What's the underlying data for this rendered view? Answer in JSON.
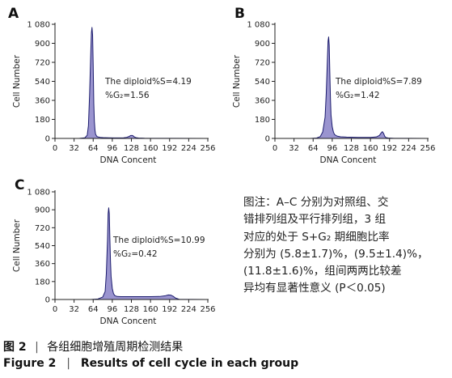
{
  "chart_data": [
    {
      "type": "area",
      "panel": "A",
      "xlabel": "DNA Concent",
      "ylabel": "Cell Number",
      "xlim": [
        0,
        256
      ],
      "ylim": [
        0,
        1080
      ],
      "xticks": [
        "0",
        "32",
        "64",
        "96",
        "128",
        "160",
        "192",
        "224",
        "256"
      ],
      "yticks": [
        "0",
        "180",
        "360",
        "540",
        "720",
        "900",
        "1 080"
      ],
      "annotation": [
        "The diploid%S=4.19",
        "%G₂=1.56"
      ],
      "x": [
        0,
        40,
        50,
        54,
        56,
        58,
        60,
        61,
        62,
        63,
        64,
        65,
        66,
        67,
        68,
        70,
        72,
        76,
        80,
        90,
        100,
        110,
        115,
        120,
        124,
        127,
        130,
        133,
        136,
        140,
        150,
        256
      ],
      "y": [
        0,
        0,
        6,
        30,
        120,
        420,
        820,
        1000,
        1050,
        980,
        700,
        330,
        160,
        80,
        40,
        20,
        14,
        10,
        8,
        6,
        5,
        5,
        6,
        10,
        18,
        28,
        28,
        14,
        7,
        4,
        2,
        0
      ]
    },
    {
      "type": "area",
      "panel": "B",
      "xlabel": "DNA Concent",
      "ylabel": "Cell Number",
      "xlim": [
        0,
        256
      ],
      "ylim": [
        0,
        1080
      ],
      "xticks": [
        "0",
        "32",
        "64",
        "96",
        "128",
        "160",
        "192",
        "224",
        "256"
      ],
      "yticks": [
        "0",
        "180",
        "360",
        "540",
        "720",
        "900",
        "1 080"
      ],
      "annotation": [
        "The diploid%S=7.89",
        "%G₂=1.42"
      ],
      "x": [
        0,
        60,
        70,
        76,
        80,
        84,
        86,
        88,
        89,
        90,
        91,
        92,
        93,
        94,
        96,
        98,
        100,
        104,
        110,
        120,
        140,
        160,
        170,
        175,
        178,
        180,
        182,
        184,
        186,
        190,
        200,
        256
      ],
      "y": [
        0,
        0,
        4,
        18,
        60,
        200,
        430,
        760,
        920,
        960,
        880,
        620,
        380,
        220,
        110,
        60,
        36,
        22,
        15,
        12,
        10,
        10,
        14,
        28,
        52,
        64,
        48,
        20,
        8,
        4,
        1,
        0
      ]
    },
    {
      "type": "area",
      "panel": "C",
      "xlabel": "DNA Concent",
      "ylabel": "Cell Number",
      "xlim": [
        0,
        256
      ],
      "ylim": [
        0,
        1080
      ],
      "xticks": [
        "0",
        "32",
        "64",
        "96",
        "128",
        "160",
        "192",
        "224",
        "256"
      ],
      "yticks": [
        "0",
        "180",
        "360",
        "540",
        "720",
        "900",
        "1 080"
      ],
      "annotation": [
        "The diploid%S=10.99",
        "%G₂=0.42"
      ],
      "x": [
        0,
        60,
        72,
        80,
        84,
        86,
        88,
        89,
        90,
        91,
        92,
        93,
        94,
        96,
        98,
        100,
        104,
        110,
        120,
        140,
        160,
        175,
        185,
        190,
        194,
        198,
        202,
        208,
        256
      ],
      "y": [
        0,
        0,
        5,
        25,
        80,
        260,
        600,
        860,
        920,
        860,
        600,
        380,
        230,
        110,
        60,
        40,
        30,
        28,
        28,
        28,
        28,
        30,
        38,
        46,
        44,
        32,
        14,
        2,
        0
      ]
    }
  ],
  "note": {
    "lines": [
      "图注：A–C 分别为对照组、交",
      "错排列组及平行排列组，3 组",
      "对应的处于 S+G₂ 期细胞比率",
      "分别为 (5.8±1.7)%，(9.5±1.4)%，",
      "(11.8±1.6)%，组间两两比较差",
      "异均有显著性意义 (P＜0.05)"
    ]
  },
  "caption": {
    "cn_fig": "图 2",
    "cn_text": "各组细胞增殖周期检测结果",
    "en_fig": "Figure 2",
    "en_text": "Results of cell cycle in each group"
  },
  "colors": {
    "fill": "#9a94cf",
    "outline": "#1c1c6e",
    "axis": "#222222"
  }
}
